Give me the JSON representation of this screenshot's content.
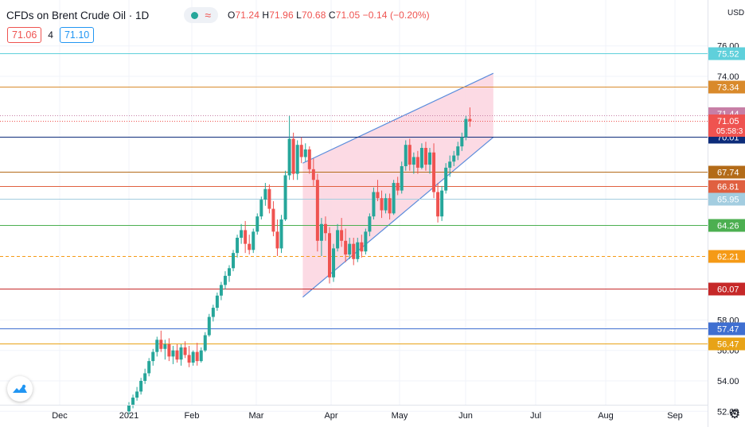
{
  "header": {
    "symbol": "CFDs on Brent Crude Oil · 1D",
    "ohlc": {
      "o_label": "O",
      "o": "71.24",
      "h_label": "H",
      "h": "71.96",
      "l_label": "L",
      "l": "70.68",
      "c_label": "C",
      "c": "71.05",
      "change": "−0.14 (−0.20%)"
    },
    "bid": "71.06",
    "spread": "4",
    "ask": "71.10",
    "currency": "USD",
    "colors": {
      "up": "#26a69a",
      "down": "#ef5350",
      "accent": "#2196f3"
    }
  },
  "chart_data": {
    "type": "candlestick",
    "title": "CFDs on Brent Crude Oil · 1D",
    "currency": "USD",
    "y_axis_ticks": [
      "76.00",
      "74.00",
      "58.00",
      "56.00",
      "54.00",
      "52.00"
    ],
    "ylim": [
      51.8,
      77.3
    ],
    "x_axis_ticks": [
      "Dec",
      "2021",
      "Feb",
      "Mar",
      "Apr",
      "May",
      "Jun",
      "Jul",
      "Aug",
      "Sep"
    ],
    "grid": true,
    "horizontal_levels": [
      {
        "label": "75.52",
        "value": 75.52,
        "color": "#5fd0db",
        "style": "solid"
      },
      {
        "label": "73.34",
        "value": 73.34,
        "color": "#d98a2b",
        "style": "solid"
      },
      {
        "label": "70.01",
        "value": 70.01,
        "color": "#0d2c7a",
        "style": "solid"
      },
      {
        "label": "67.74",
        "value": 67.74,
        "color": "#b36b18",
        "style": "solid"
      },
      {
        "label": "66.81",
        "value": 66.81,
        "color": "#e06040",
        "style": "solid"
      },
      {
        "label": "65.95",
        "value": 65.95,
        "color": "#a3cde0",
        "style": "solid"
      },
      {
        "label": "64.26",
        "value": 64.26,
        "color": "#4caf50",
        "style": "solid"
      },
      {
        "label": "62.21",
        "value": 62.21,
        "color": "#f59a16",
        "style": "dashed"
      },
      {
        "label": "60.07",
        "value": 60.07,
        "color": "#c62828",
        "style": "solid"
      },
      {
        "label": "57.47",
        "value": 57.47,
        "color": "#3f6fd1",
        "style": "solid"
      },
      {
        "label": "56.47",
        "value": 56.47,
        "color": "#e8a317",
        "style": "solid"
      }
    ],
    "price_markers": [
      {
        "label": "71.44",
        "value": 71.44,
        "color": "#c77fa6"
      },
      {
        "label": "71.05",
        "value": 71.05,
        "color": "#ef5350",
        "countdown": "05:58:3"
      }
    ],
    "channel": {
      "upper": [
        [
          3.6,
          68.3
        ],
        [
          6.45,
          74.2
        ]
      ],
      "lower": [
        [
          3.6,
          59.5
        ],
        [
          6.45,
          70.0
        ]
      ],
      "fill": "#fbd3df",
      "stroke": "#5b8ddc"
    },
    "candles": [
      [
        1.0,
        52.0,
        52.6,
        51.8,
        52.4
      ],
      [
        1.06,
        52.4,
        53.1,
        52.2,
        52.9
      ],
      [
        1.12,
        52.9,
        53.6,
        52.7,
        53.3
      ],
      [
        1.18,
        53.3,
        54.2,
        53.1,
        54.0
      ],
      [
        1.24,
        54.0,
        54.8,
        53.8,
        54.5
      ],
      [
        1.3,
        54.5,
        55.5,
        54.3,
        55.3
      ],
      [
        1.36,
        55.3,
        56.1,
        55.0,
        55.9
      ],
      [
        1.42,
        55.9,
        56.9,
        55.6,
        56.7
      ],
      [
        1.48,
        56.7,
        57.3,
        55.9,
        56.1
      ],
      [
        1.54,
        56.1,
        56.7,
        55.4,
        56.4
      ],
      [
        1.6,
        56.4,
        56.8,
        55.3,
        55.6
      ],
      [
        1.66,
        55.6,
        56.3,
        55.1,
        56.0
      ],
      [
        1.72,
        56.0,
        56.4,
        55.2,
        55.4
      ],
      [
        1.78,
        55.4,
        56.4,
        55.0,
        56.2
      ],
      [
        1.84,
        56.2,
        56.6,
        55.5,
        55.7
      ],
      [
        1.9,
        55.7,
        56.3,
        54.9,
        55.2
      ],
      [
        1.96,
        55.2,
        56.0,
        55.0,
        55.9
      ],
      [
        2.02,
        55.9,
        56.5,
        55.0,
        55.3
      ],
      [
        2.08,
        55.3,
        56.2,
        55.2,
        56.0
      ],
      [
        2.14,
        56.0,
        57.2,
        55.9,
        57.0
      ],
      [
        2.2,
        57.0,
        58.4,
        56.9,
        58.2
      ],
      [
        2.26,
        58.2,
        59.0,
        57.9,
        58.8
      ],
      [
        2.32,
        58.8,
        59.8,
        58.6,
        59.6
      ],
      [
        2.38,
        59.6,
        60.5,
        59.3,
        60.3
      ],
      [
        2.44,
        60.3,
        61.2,
        60.0,
        60.9
      ],
      [
        2.5,
        60.9,
        61.6,
        60.5,
        61.4
      ],
      [
        2.56,
        61.4,
        62.6,
        61.2,
        62.4
      ],
      [
        2.62,
        62.4,
        63.6,
        62.1,
        63.4
      ],
      [
        2.68,
        63.4,
        64.3,
        63.0,
        63.9
      ],
      [
        2.74,
        63.9,
        64.5,
        62.4,
        63.0
      ],
      [
        2.8,
        63.0,
        63.6,
        62.3,
        62.6
      ],
      [
        2.86,
        62.6,
        64.0,
        62.4,
        63.8
      ],
      [
        2.92,
        63.8,
        65.0,
        63.6,
        64.8
      ],
      [
        2.98,
        64.8,
        66.1,
        64.6,
        65.9
      ],
      [
        3.04,
        65.9,
        67.0,
        65.5,
        66.6
      ],
      [
        3.1,
        66.6,
        66.9,
        65.0,
        65.3
      ],
      [
        3.16,
        65.3,
        65.8,
        63.5,
        63.8
      ],
      [
        3.22,
        63.8,
        64.6,
        62.2,
        62.7
      ],
      [
        3.28,
        62.7,
        64.9,
        62.4,
        64.6
      ],
      [
        3.34,
        64.6,
        67.8,
        64.5,
        67.5
      ],
      [
        3.4,
        67.5,
        71.4,
        67.2,
        69.9
      ],
      [
        3.46,
        69.9,
        70.3,
        67.2,
        67.6
      ],
      [
        3.52,
        67.6,
        69.8,
        67.2,
        69.5
      ],
      [
        3.58,
        69.5,
        70.0,
        68.3,
        68.7
      ],
      [
        3.64,
        68.7,
        69.6,
        68.4,
        69.2
      ],
      [
        3.7,
        69.2,
        69.4,
        67.6,
        67.9
      ],
      [
        3.76,
        67.9,
        68.6,
        66.8,
        67.2
      ],
      [
        3.82,
        67.2,
        67.6,
        62.5,
        63.2
      ],
      [
        3.88,
        63.2,
        64.7,
        62.2,
        64.3
      ],
      [
        3.94,
        64.3,
        64.8,
        63.2,
        63.7
      ],
      [
        4.0,
        63.7,
        64.1,
        60.4,
        60.8
      ],
      [
        4.06,
        60.8,
        63.0,
        60.5,
        62.7
      ],
      [
        4.12,
        62.7,
        64.3,
        62.5,
        63.9
      ],
      [
        4.18,
        63.9,
        64.7,
        62.8,
        63.2
      ],
      [
        4.24,
        63.2,
        64.0,
        61.8,
        62.3
      ],
      [
        4.3,
        62.3,
        63.4,
        62.0,
        63.0
      ],
      [
        4.36,
        63.0,
        63.4,
        61.6,
        62.0
      ],
      [
        4.42,
        62.0,
        63.4,
        61.8,
        63.1
      ],
      [
        4.48,
        63.1,
        63.6,
        62.1,
        62.5
      ],
      [
        4.54,
        62.5,
        64.0,
        62.3,
        63.8
      ],
      [
        4.6,
        63.8,
        65.0,
        63.5,
        64.8
      ],
      [
        4.66,
        64.8,
        66.7,
        64.6,
        66.4
      ],
      [
        4.72,
        66.4,
        67.2,
        65.8,
        66.0
      ],
      [
        4.78,
        66.0,
        66.5,
        64.7,
        65.2
      ],
      [
        4.84,
        65.2,
        66.3,
        65.0,
        66.0
      ],
      [
        4.9,
        66.0,
        66.3,
        64.6,
        65.0
      ],
      [
        4.96,
        65.0,
        67.2,
        64.9,
        67.0
      ],
      [
        5.02,
        67.0,
        67.4,
        66.2,
        66.5
      ],
      [
        5.08,
        66.5,
        68.4,
        66.3,
        68.1
      ],
      [
        5.14,
        68.1,
        69.8,
        67.8,
        69.5
      ],
      [
        5.2,
        69.5,
        69.9,
        67.8,
        68.2
      ],
      [
        5.26,
        68.2,
        69.0,
        67.6,
        68.7
      ],
      [
        5.32,
        68.7,
        69.1,
        67.6,
        68.0
      ],
      [
        5.38,
        68.0,
        69.6,
        67.9,
        69.3
      ],
      [
        5.44,
        69.3,
        69.7,
        67.8,
        68.2
      ],
      [
        5.5,
        68.2,
        69.3,
        67.6,
        69.0
      ],
      [
        5.56,
        69.0,
        69.6,
        66.0,
        66.4
      ],
      [
        5.62,
        66.4,
        67.0,
        64.4,
        64.8
      ],
      [
        5.68,
        64.8,
        66.8,
        64.5,
        66.5
      ],
      [
        5.74,
        66.5,
        68.3,
        66.3,
        68.0
      ],
      [
        5.8,
        68.0,
        68.8,
        67.4,
        68.4
      ],
      [
        5.86,
        68.4,
        69.1,
        68.1,
        68.8
      ],
      [
        5.92,
        68.8,
        69.7,
        68.5,
        69.4
      ],
      [
        5.98,
        69.4,
        70.3,
        69.1,
        70.0
      ],
      [
        6.04,
        70.0,
        71.4,
        69.8,
        71.2
      ],
      [
        6.1,
        71.2,
        71.96,
        70.68,
        71.05
      ]
    ]
  }
}
